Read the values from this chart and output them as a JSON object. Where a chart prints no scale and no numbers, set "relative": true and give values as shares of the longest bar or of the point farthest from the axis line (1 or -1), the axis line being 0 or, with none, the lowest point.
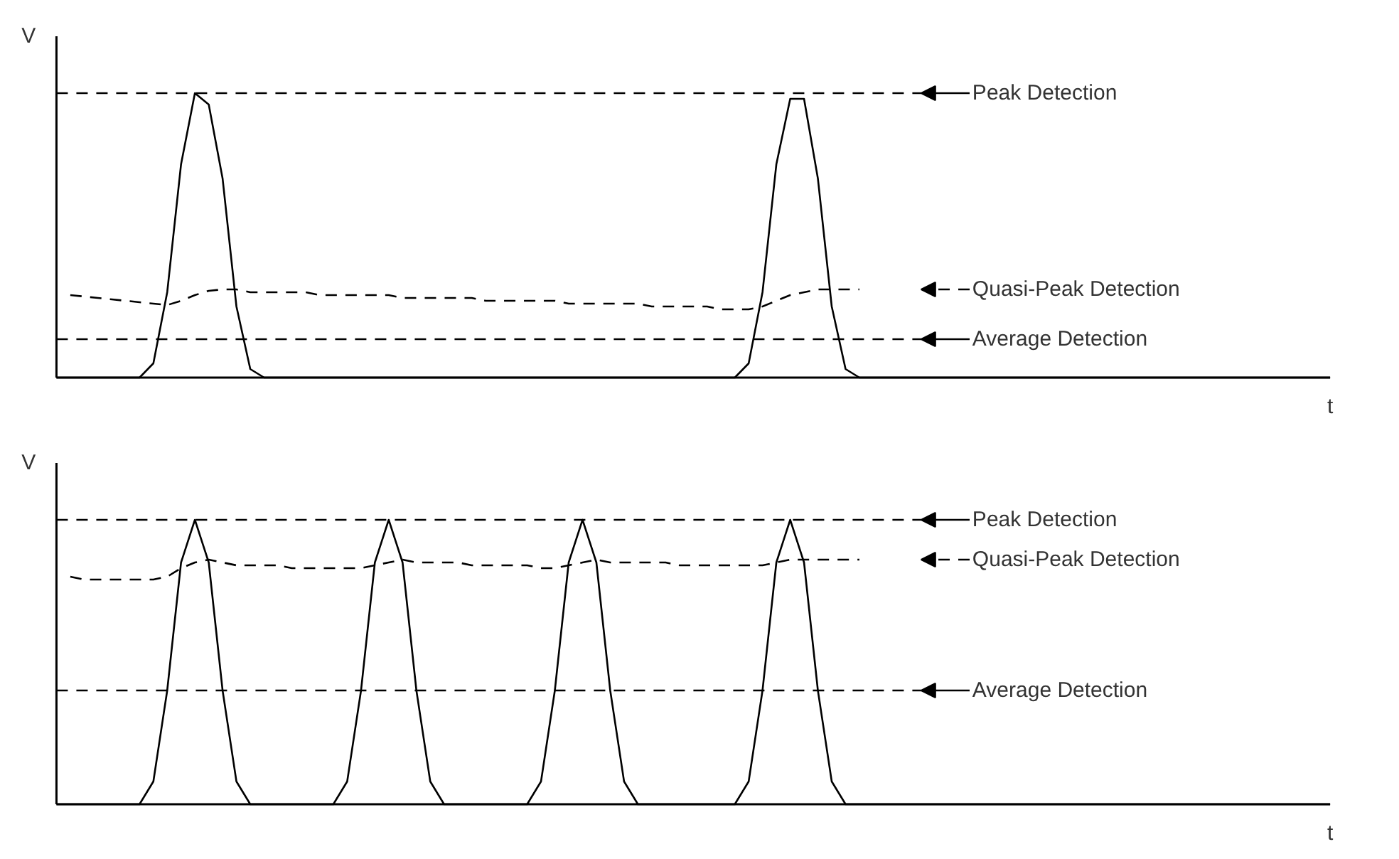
{
  "chart_data": [
    {
      "type": "line",
      "relative": true,
      "xlabel": "t",
      "ylabel": "V",
      "legend": "right",
      "grid": false,
      "tick_labels": false,
      "categories": [
        null,
        null,
        null,
        null,
        null,
        null,
        null,
        null,
        null,
        null,
        null,
        null,
        null,
        null,
        null,
        null,
        null,
        null,
        null,
        null,
        null,
        null,
        null,
        null,
        null,
        null,
        null,
        null,
        null,
        null,
        null,
        null,
        null,
        null,
        null,
        null,
        null,
        null,
        null,
        null,
        null,
        null,
        null,
        null,
        null,
        null,
        null,
        null,
        null,
        null,
        null,
        null,
        null,
        null,
        null,
        null,
        null,
        null,
        null,
        null,
        null,
        null,
        null,
        null,
        null,
        null,
        null,
        null,
        null,
        null,
        null,
        null,
        null,
        null,
        null,
        null,
        null,
        null,
        null,
        null,
        null,
        null,
        null,
        null,
        null,
        null,
        null,
        null,
        null,
        null,
        null,
        null,
        null
      ],
      "series": [
        {
          "color": "#000000",
          "line_style": "solid",
          "values": [
            0,
            0,
            0,
            0,
            0,
            0,
            0,
            0.05,
            0.3,
            0.75,
            1,
            0.96,
            0.7,
            0.25,
            0.03,
            0,
            0,
            0,
            0,
            0,
            0,
            0,
            0,
            0,
            0,
            0,
            0,
            0,
            0,
            0,
            0,
            0,
            0,
            0,
            0,
            0,
            0,
            0,
            0,
            0,
            0,
            0,
            0,
            0,
            0,
            0,
            0,
            0,
            0,
            0,
            0.05,
            0.3,
            0.75,
            0.98,
            0.98,
            0.7,
            0.25,
            0.03,
            0,
            0,
            0,
            0,
            0,
            0,
            0,
            0,
            0,
            0,
            0,
            0,
            0,
            0,
            0,
            0,
            0,
            0,
            0,
            0,
            0,
            0,
            0,
            0,
            0,
            0,
            0,
            0,
            0,
            0,
            0,
            0,
            0,
            0,
            0
          ]
        },
        {
          "name": "Quasi-Peak Detection",
          "color": "#000000",
          "line_style": "dashed",
          "values": [
            null,
            0.29,
            0.285,
            0.28,
            0.275,
            0.27,
            0.265,
            0.26,
            0.255,
            0.27,
            0.29,
            0.305,
            0.31,
            0.31,
            0.3,
            0.3,
            0.3,
            0.3,
            0.3,
            0.29,
            0.29,
            0.29,
            0.29,
            0.29,
            0.29,
            0.28,
            0.28,
            0.28,
            0.28,
            0.28,
            0.28,
            0.27,
            0.27,
            0.27,
            0.27,
            0.27,
            0.27,
            0.26,
            0.26,
            0.26,
            0.26,
            0.26,
            0.26,
            0.25,
            0.25,
            0.25,
            0.25,
            0.25,
            0.24,
            0.24,
            0.24,
            0.25,
            0.27,
            0.29,
            0.3,
            0.31,
            0.31,
            0.31,
            0.31,
            null,
            null,
            null,
            null,
            null,
            null,
            null,
            null,
            null,
            null,
            null,
            null,
            null,
            null,
            null,
            null,
            null,
            null,
            null,
            null,
            null,
            null,
            null,
            null,
            null,
            null,
            null,
            null,
            null,
            null,
            null,
            null,
            null,
            null
          ]
        }
      ],
      "ref_lines": [
        {
          "axis": "y",
          "value": 1,
          "label": "Peak Detection",
          "line_style": "dashed",
          "color": "#000000"
        },
        {
          "axis": "y",
          "value": 0.135,
          "label": "Average Detection",
          "line_style": "dashed",
          "color": "#000000"
        }
      ]
    },
    {
      "type": "line",
      "relative": true,
      "xlabel": "t",
      "ylabel": "V",
      "legend": "right",
      "grid": false,
      "tick_labels": false,
      "categories": [
        null,
        null,
        null,
        null,
        null,
        null,
        null,
        null,
        null,
        null,
        null,
        null,
        null,
        null,
        null,
        null,
        null,
        null,
        null,
        null,
        null,
        null,
        null,
        null,
        null,
        null,
        null,
        null,
        null,
        null,
        null,
        null,
        null,
        null,
        null,
        null,
        null,
        null,
        null,
        null,
        null,
        null,
        null,
        null,
        null,
        null,
        null,
        null,
        null,
        null,
        null,
        null,
        null,
        null,
        null,
        null,
        null,
        null,
        null,
        null,
        null,
        null,
        null,
        null,
        null,
        null,
        null,
        null,
        null,
        null,
        null,
        null,
        null,
        null,
        null,
        null,
        null,
        null,
        null,
        null,
        null,
        null,
        null,
        null,
        null,
        null,
        null,
        null,
        null,
        null,
        null,
        null,
        null
      ],
      "series": [
        {
          "color": "#000000",
          "line_style": "solid",
          "values": [
            0,
            0,
            0,
            0,
            0,
            0,
            0,
            0.08,
            0.4,
            0.85,
            1,
            0.85,
            0.4,
            0.08,
            0,
            0,
            0,
            0,
            0,
            0,
            0,
            0.08,
            0.4,
            0.85,
            1,
            0.85,
            0.4,
            0.08,
            0,
            0,
            0,
            0,
            0,
            0,
            0,
            0.08,
            0.4,
            0.85,
            1,
            0.85,
            0.4,
            0.08,
            0,
            0,
            0,
            0,
            0,
            0,
            0,
            0,
            0.08,
            0.4,
            0.85,
            1,
            0.85,
            0.4,
            0.08,
            0,
            0,
            0,
            0,
            0,
            0,
            0,
            0,
            0,
            0,
            0,
            0,
            0,
            0,
            0,
            0,
            0,
            0,
            0,
            0,
            0,
            0,
            0,
            0,
            0,
            0,
            0,
            0,
            0,
            0,
            0,
            0,
            0,
            0,
            0,
            0
          ]
        },
        {
          "name": "Quasi-Peak Detection",
          "color": "#000000",
          "line_style": "dashed",
          "values": [
            null,
            0.8,
            0.79,
            0.79,
            0.79,
            0.79,
            0.79,
            0.79,
            0.8,
            0.83,
            0.85,
            0.86,
            0.85,
            0.84,
            0.84,
            0.84,
            0.84,
            0.83,
            0.83,
            0.83,
            0.83,
            0.83,
            0.83,
            0.84,
            0.85,
            0.86,
            0.85,
            0.85,
            0.85,
            0.85,
            0.84,
            0.84,
            0.84,
            0.84,
            0.84,
            0.83,
            0.83,
            0.84,
            0.85,
            0.86,
            0.85,
            0.85,
            0.85,
            0.85,
            0.85,
            0.84,
            0.84,
            0.84,
            0.84,
            0.84,
            0.84,
            0.84,
            0.85,
            0.86,
            0.86,
            0.86,
            0.86,
            0.86,
            0.86,
            null,
            null,
            null,
            null,
            null,
            null,
            null,
            null,
            null,
            null,
            null,
            null,
            null,
            null,
            null,
            null,
            null,
            null,
            null,
            null,
            null,
            null,
            null,
            null,
            null,
            null,
            null,
            null,
            null,
            null,
            null,
            null,
            null,
            null
          ]
        }
      ],
      "ref_lines": [
        {
          "axis": "y",
          "value": 1,
          "label": "Peak Detection",
          "line_style": "dashed",
          "color": "#000000"
        },
        {
          "axis": "y",
          "value": 0.4,
          "label": "Average Detection",
          "line_style": "dashed",
          "color": "#000000"
        }
      ]
    }
  ]
}
